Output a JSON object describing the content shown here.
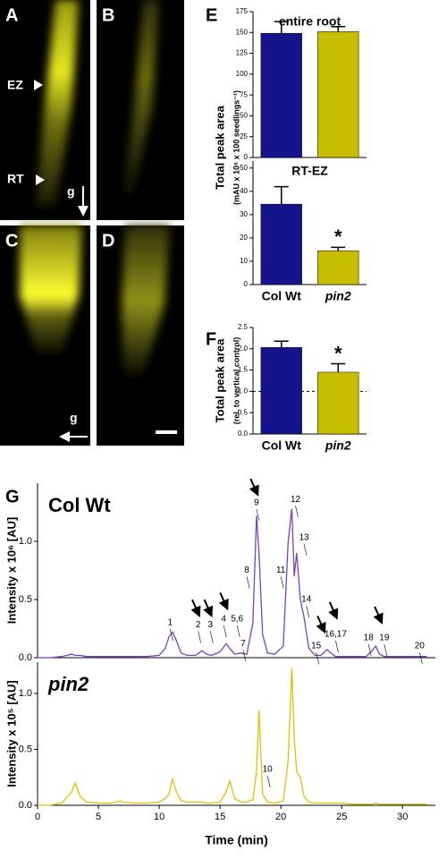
{
  "image_panels": [
    {
      "letter": "A",
      "labels": [
        "EZ",
        "RT",
        "g"
      ]
    },
    {
      "letter": "B",
      "labels": []
    },
    {
      "letter": "C",
      "labels": [
        "g"
      ]
    },
    {
      "letter": "D",
      "labels": []
    }
  ],
  "chart_data": [
    {
      "type": "bar",
      "panel": "E",
      "title": "entire root",
      "categories": [
        null,
        null
      ],
      "values": [
        149,
        151
      ],
      "errors": [
        14,
        6
      ],
      "colors": [
        "#14148c",
        "#c8be00"
      ],
      "ylim": [
        0,
        175
      ],
      "yticks": [
        0,
        25,
        50,
        75,
        100,
        125,
        150,
        175
      ],
      "ylabel": [
        "Total peak area",
        "(mAU x 10⁶ x 100 seedlings⁻¹)"
      ]
    },
    {
      "type": "bar",
      "title": "RT-EZ",
      "categories": [
        "Col Wt",
        "pin2"
      ],
      "values": [
        34.5,
        14.5
      ],
      "errors": [
        7.5,
        1.5
      ],
      "colors": [
        "#14148c",
        "#c8be00"
      ],
      "ylim": [
        0,
        53
      ],
      "yticks": [
        0,
        10,
        20,
        30,
        40,
        50
      ],
      "annotation": "*"
    },
    {
      "type": "bar",
      "panel": "F",
      "categories": [
        "Col Wt",
        "pin2"
      ],
      "values": [
        2.03,
        1.45
      ],
      "errors": [
        0.15,
        0.2
      ],
      "colors": [
        "#14148c",
        "#c8be00"
      ],
      "ylim": [
        0,
        2.5
      ],
      "yticks": [
        {
          "value": 0,
          "label": "0.0"
        },
        {
          "value": 0.5,
          "label": "0.5"
        },
        {
          "value": 1,
          "label": "1.0"
        },
        {
          "value": 1.5,
          "label": "1.5"
        },
        {
          "value": 2,
          "label": "2.0"
        },
        {
          "value": 2.5,
          "label": "2.5"
        }
      ],
      "reference_line": 1,
      "annotation": "*",
      "ylabel": [
        "Total peak area",
        "(rel. to vertical control)"
      ]
    },
    {
      "type": "line",
      "panel": "G",
      "series": [
        {
          "name": "Col Wt",
          "color": "#7b3fc8",
          "values": [
            0,
            0,
            0.01,
            0.03,
            0.02,
            0.02,
            0.01,
            0.01,
            0.01,
            0.01,
            0.01,
            0.01,
            0.01,
            0.02,
            0.08,
            0.18,
            0.22,
            0.15,
            0.04,
            0.02,
            0.02,
            0.06,
            0.03,
            0.02,
            0.05,
            0.12,
            0.08,
            0.03,
            0.04,
            0.03,
            0.3,
            1.22,
            0.9,
            0.2,
            0.04,
            0.03,
            0.1,
            1.0,
            1.28,
            0.7,
            0.9,
            0.5,
            0.35,
            0.08,
            0.02,
            0.02,
            0.07,
            0.04,
            0.01,
            0.01,
            0.01,
            0.01,
            0.06,
            0.1,
            0.03,
            0.01,
            0.01,
            0.01,
            0.01,
            0.01,
            0.01
          ]
        }
      ],
      "x": [
        0,
        1,
        2,
        2.8,
        3.1,
        3.5,
        4,
        5,
        6,
        6.8,
        7,
        8,
        9,
        10,
        10.5,
        10.8,
        11.1,
        11.4,
        11.8,
        12.3,
        13,
        13.5,
        13.9,
        14.3,
        15,
        15.5,
        15.8,
        16.2,
        16.7,
        17.2,
        17.7,
        18.0,
        18.2,
        18.5,
        18.9,
        19.5,
        20.2,
        20.6,
        20.9,
        21.1,
        21.3,
        21.6,
        21.9,
        22.3,
        22.8,
        23.3,
        23.8,
        24.1,
        24.5,
        25,
        26,
        27,
        27.5,
        27.8,
        28.1,
        28.5,
        29,
        30,
        31,
        31.5,
        32
      ],
      "xlim": [
        0,
        32.7
      ],
      "ylim": [
        0,
        1.5
      ],
      "yticks": [
        {
          "value": 0,
          "label": "0.0"
        },
        {
          "value": 0.5,
          "label": "0.5"
        },
        {
          "value": 1,
          "label": "1.0"
        }
      ],
      "ylabel": "Intensity x 10⁶ [AU]",
      "annotations": [
        {
          "text": "1",
          "x": 10.9,
          "y": 0.3
        },
        {
          "text": "2",
          "x": 13.2,
          "y": 0.28
        },
        {
          "text": "3",
          "x": 14.2,
          "y": 0.28
        },
        {
          "text": "4",
          "x": 15.3,
          "y": 0.33
        },
        {
          "text": "5,6",
          "x": 16.4,
          "y": 0.33
        },
        {
          "text": "7",
          "x": 16.9,
          "y": 0.12
        },
        {
          "text": "8",
          "x": 17.2,
          "y": 0.75
        },
        {
          "text": "9",
          "x": 18.0,
          "y": 1.33
        },
        {
          "text": "11",
          "x": 20.0,
          "y": 0.75
        },
        {
          "text": "12",
          "x": 21.2,
          "y": 1.36
        },
        {
          "text": "13",
          "x": 21.9,
          "y": 1.03
        },
        {
          "text": "14",
          "x": 22.1,
          "y": 0.5
        },
        {
          "text": "15",
          "x": 22.9,
          "y": 0.1
        },
        {
          "text": "16,17",
          "x": 24.5,
          "y": 0.2
        },
        {
          "text": "18",
          "x": 27.2,
          "y": 0.17
        },
        {
          "text": "19",
          "x": 28.5,
          "y": 0.17
        },
        {
          "text": "20",
          "x": 31.4,
          "y": 0.1
        }
      ]
    },
    {
      "type": "line",
      "series": [
        {
          "name": "pin2",
          "color": "#e0c000",
          "values": [
            0,
            0,
            0.02,
            0.12,
            0.2,
            0.08,
            0.03,
            0.02,
            0.02,
            0.04,
            0.03,
            0.02,
            0.02,
            0.03,
            0.06,
            0.1,
            0.24,
            0.12,
            0.04,
            0.03,
            0.03,
            0.03,
            0.02,
            0.02,
            0.03,
            0.12,
            0.22,
            0.06,
            0.03,
            0.03,
            0.05,
            0.3,
            0.85,
            0.1,
            0.03,
            0.02,
            0.04,
            0.4,
            1.23,
            0.6,
            0.3,
            0.25,
            0.08,
            0.03,
            0.02,
            0.02,
            0.02,
            0.02,
            0.02,
            0.02,
            0.01,
            0.01,
            0.01,
            0.02,
            0.01,
            0.01,
            0.01,
            0.01,
            0.01,
            0.01,
            0.01
          ]
        }
      ],
      "x": [
        0,
        1,
        2,
        2.8,
        3.1,
        3.5,
        4,
        5,
        6,
        6.8,
        7,
        8,
        9,
        10,
        10.5,
        10.8,
        11.1,
        11.4,
        11.8,
        12.3,
        13,
        13.5,
        13.9,
        14.3,
        15,
        15.5,
        15.8,
        16.2,
        16.7,
        17.2,
        17.7,
        18.0,
        18.2,
        18.5,
        18.9,
        19.5,
        20.2,
        20.6,
        20.9,
        21.1,
        21.3,
        21.6,
        21.9,
        22.3,
        22.8,
        23.3,
        23.8,
        24.1,
        24.5,
        25,
        26,
        27,
        27.5,
        27.8,
        28.1,
        28.5,
        29,
        30,
        31,
        31.5,
        32
      ],
      "xlim": [
        0,
        32.7
      ],
      "ylim": [
        0,
        1.28
      ],
      "yticks": [
        {
          "value": 0,
          "label": "0.0"
        },
        {
          "value": 0.5,
          "label": "0.5"
        },
        {
          "value": 1,
          "label": "1.0"
        }
      ],
      "xticks": [
        0,
        5,
        10,
        15,
        20,
        25,
        30
      ],
      "xlabel": "Time (min)",
      "ylabel": "Intensity x 10⁵ [AU]",
      "annotations": [
        {
          "text": "10",
          "x": 18.9,
          "y": 0.32
        }
      ]
    }
  ]
}
